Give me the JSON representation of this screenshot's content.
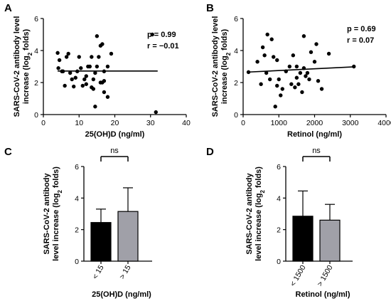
{
  "chart_data": [
    {
      "panel": "A",
      "type": "scatter",
      "xlabel": "25(OH)D (ng/ml)",
      "ylabel_line1": "SARS-CoV-2 antibody level",
      "ylabel_line2": "increase (log2 folds)",
      "xlim": [
        0,
        40
      ],
      "ylim": [
        0,
        6
      ],
      "xticks": [
        0,
        10,
        20,
        30,
        40
      ],
      "yticks": [
        0,
        2,
        4,
        6
      ],
      "annotations": {
        "p": "p = 0.99",
        "r": "r = −0.01"
      },
      "fit_line": [
        [
          4,
          2.72
        ],
        [
          32,
          2.72
        ]
      ],
      "points": [
        [
          4.0,
          3.85
        ],
        [
          4.5,
          3.4
        ],
        [
          4.2,
          2.9
        ],
        [
          5.2,
          2.7
        ],
        [
          5.5,
          2.7
        ],
        [
          6.0,
          1.8
        ],
        [
          6.5,
          3.6
        ],
        [
          7.0,
          3.8
        ],
        [
          7.5,
          2.6
        ],
        [
          8.0,
          2.2
        ],
        [
          8.5,
          1.75
        ],
        [
          9.0,
          2.3
        ],
        [
          9.5,
          2.7
        ],
        [
          10.0,
          3.6
        ],
        [
          10.5,
          2.9
        ],
        [
          11.0,
          1.8
        ],
        [
          11.5,
          2.2
        ],
        [
          12.0,
          1.9
        ],
        [
          12.5,
          3.0
        ],
        [
          12.0,
          2.4
        ],
        [
          13.0,
          3.0
        ],
        [
          13.5,
          1.7
        ],
        [
          13.5,
          3.6
        ],
        [
          14.0,
          2.2
        ],
        [
          14.0,
          1.6
        ],
        [
          14.5,
          2.6
        ],
        [
          15.0,
          3.0
        ],
        [
          15.0,
          4.9
        ],
        [
          15.5,
          3.6
        ],
        [
          16.0,
          2.0
        ],
        [
          16.0,
          4.3
        ],
        [
          16.5,
          4.4
        ],
        [
          17.0,
          2.7
        ],
        [
          17.0,
          2.1
        ],
        [
          18.0,
          3.0
        ],
        [
          18.0,
          1.1
        ],
        [
          19.0,
          3.8
        ],
        [
          14.5,
          0.5
        ],
        [
          16.5,
          2.0
        ],
        [
          17.0,
          1.4
        ],
        [
          30.5,
          5.0
        ],
        [
          31.5,
          0.15
        ]
      ]
    },
    {
      "panel": "B",
      "type": "scatter",
      "xlabel": "Retinol (ng/ml)",
      "ylabel_line1": "SARS-CoV-2 antibody level",
      "ylabel_line2": "increase (log2 folds)",
      "xlim": [
        0,
        4000
      ],
      "ylim": [
        0,
        6
      ],
      "xticks": [
        0,
        1000,
        2000,
        3000,
        4000
      ],
      "yticks": [
        0,
        2,
        4,
        6
      ],
      "annotations": {
        "p": "p = 0.69",
        "r": "r = 0.07"
      },
      "fit_line": [
        [
          100,
          2.65
        ],
        [
          3100,
          2.98
        ]
      ],
      "points": [
        [
          150,
          2.65
        ],
        [
          400,
          3.3
        ],
        [
          500,
          1.9
        ],
        [
          550,
          4.2
        ],
        [
          600,
          3.7
        ],
        [
          650,
          2.6
        ],
        [
          680,
          5.0
        ],
        [
          750,
          2.2
        ],
        [
          800,
          4.7
        ],
        [
          850,
          3.6
        ],
        [
          900,
          0.5
        ],
        [
          950,
          1.8
        ],
        [
          1000,
          2.2
        ],
        [
          1050,
          1.2
        ],
        [
          1100,
          1.6
        ],
        [
          1200,
          2.7
        ],
        [
          1300,
          3.0
        ],
        [
          1400,
          3.7
        ],
        [
          1450,
          1.7
        ],
        [
          1500,
          2.3
        ],
        [
          1500,
          3.0
        ],
        [
          1550,
          1.9
        ],
        [
          1600,
          2.6
        ],
        [
          1700,
          4.9
        ],
        [
          1700,
          2.9
        ],
        [
          1750,
          2.4
        ],
        [
          1800,
          2.6
        ],
        [
          1850,
          2.2
        ],
        [
          1900,
          3.9
        ],
        [
          2000,
          3.3
        ],
        [
          2050,
          4.4
        ],
        [
          2100,
          2.1
        ],
        [
          2200,
          1.6
        ],
        [
          2400,
          3.8
        ],
        [
          3100,
          3.0
        ],
        [
          1350,
          1.9
        ],
        [
          1650,
          1.4
        ],
        [
          950,
          3.4
        ]
      ]
    },
    {
      "panel": "C",
      "type": "bar",
      "xlabel": "25(OH)D (ng/ml)",
      "ylabel_line1": "SARS-CoV-2 antibody",
      "ylabel_line2": "level increase (log2 folds)",
      "ylim": [
        0,
        6
      ],
      "yticks": [
        0,
        2,
        4,
        6
      ],
      "categories": [
        "< 15",
        "> 15"
      ],
      "values": [
        2.45,
        3.15
      ],
      "errors": [
        0.85,
        1.5
      ],
      "colors": [
        "#000000",
        "#a0a0a8"
      ],
      "significance": "ns"
    },
    {
      "panel": "D",
      "type": "bar",
      "xlabel": "Retinol (ng/ml)",
      "ylabel_line1": "SARS-CoV-2 antibody",
      "ylabel_line2": "level increase (log2 folds)",
      "ylim": [
        0,
        6
      ],
      "yticks": [
        0,
        2,
        4,
        6
      ],
      "categories": [
        "< 1500",
        "> 1500"
      ],
      "values": [
        2.85,
        2.6
      ],
      "errors": [
        1.6,
        1.0
      ],
      "colors": [
        "#000000",
        "#a0a0a8"
      ],
      "significance": "ns"
    }
  ],
  "colors": {
    "ink": "#000000",
    "bar_light": "#a0a0a8"
  }
}
